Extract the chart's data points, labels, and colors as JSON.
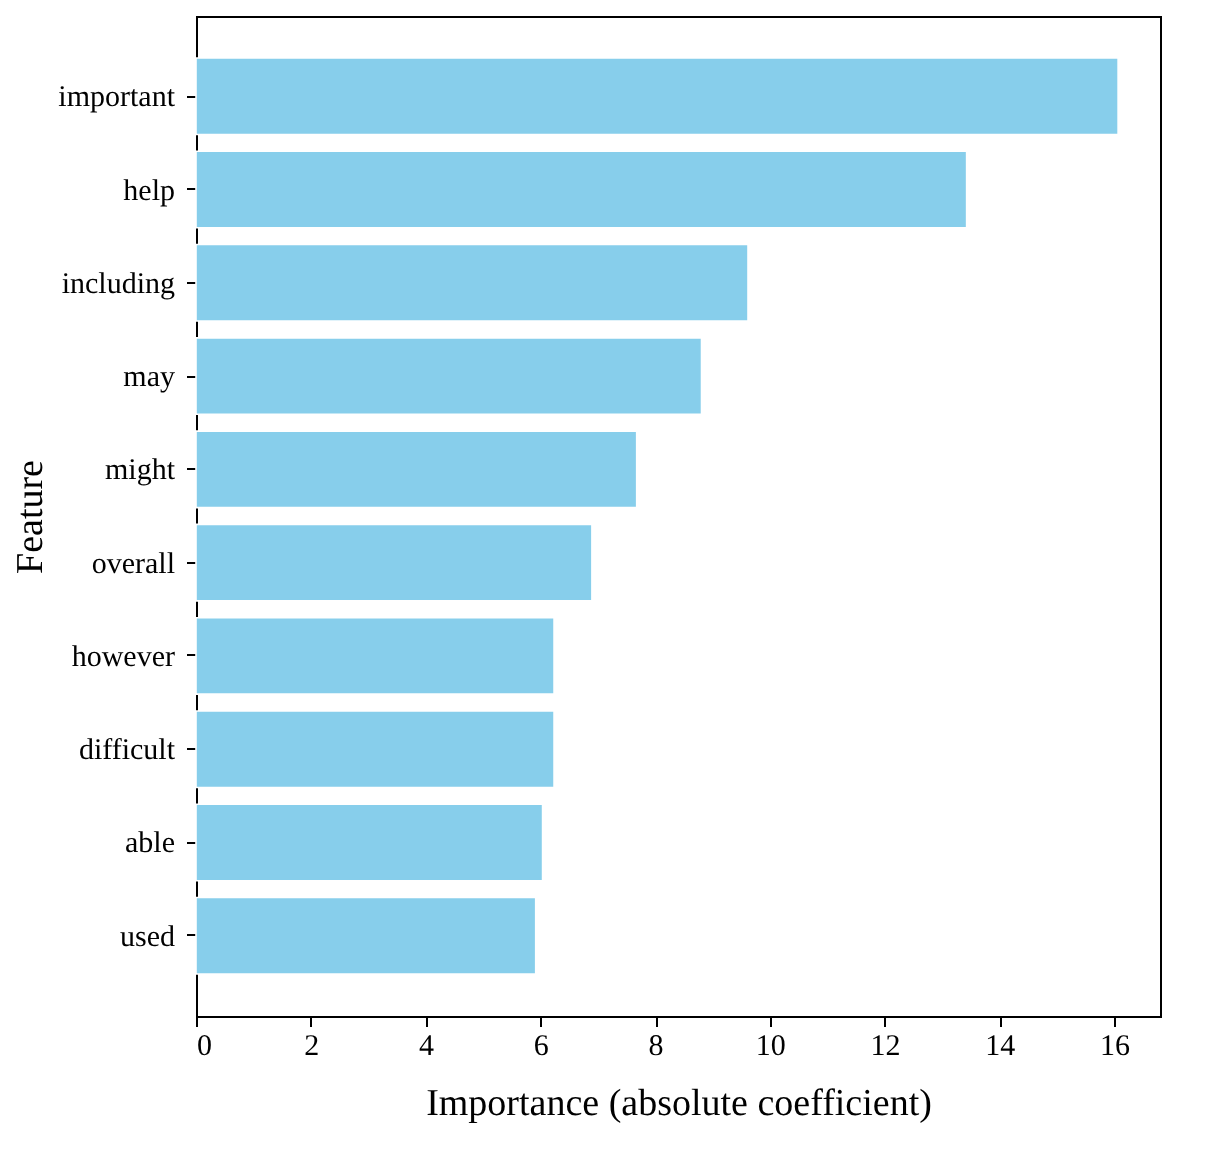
{
  "chart_data": {
    "type": "bar",
    "orientation": "horizontal",
    "xlabel": "Importance (absolute coefficient)",
    "ylabel": "Feature",
    "categories": [
      "important",
      "help",
      "including",
      "may",
      "might",
      "overall",
      "however",
      "difficult",
      "able",
      "used"
    ],
    "values": [
      16.07,
      13.43,
      9.62,
      8.81,
      7.68,
      6.9,
      6.24,
      6.24,
      6.04,
      5.92
    ],
    "color": "#87ceeb",
    "xlim": [
      0,
      16.8
    ],
    "xticks": [
      0,
      2,
      4,
      6,
      8,
      10,
      12,
      14,
      16
    ],
    "grid": false
  }
}
